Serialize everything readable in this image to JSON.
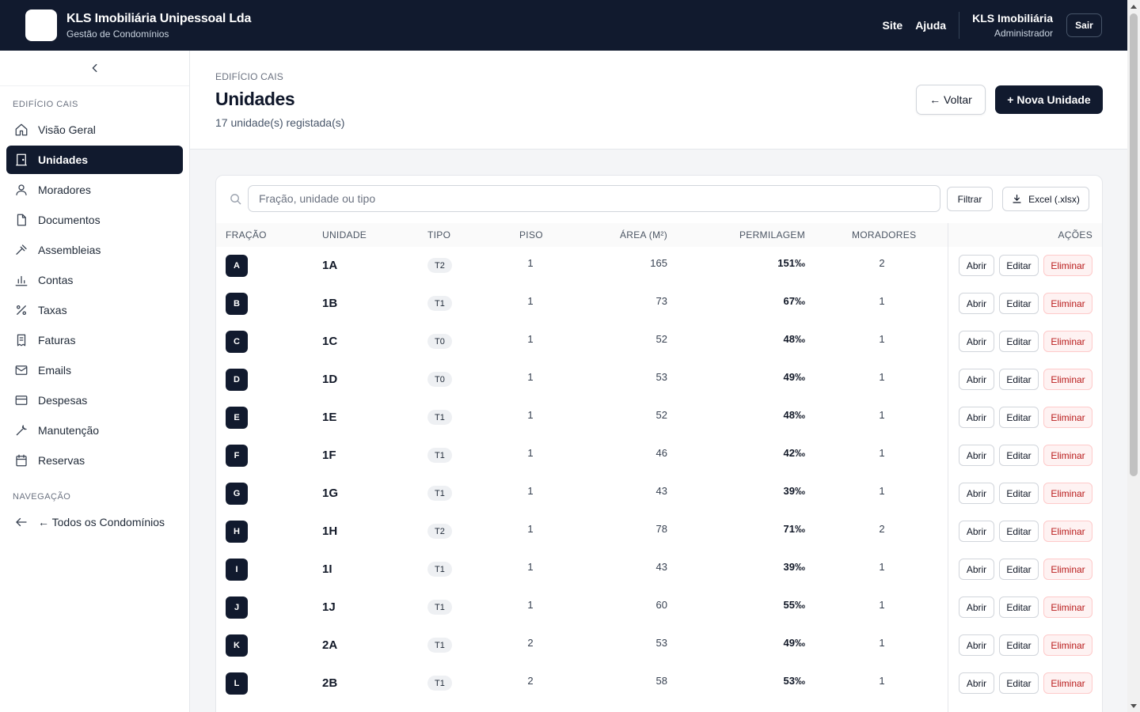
{
  "header": {
    "company": "KLS Imobiliária Unipessoal Lda",
    "subtitle": "Gestão de Condomínios",
    "links": [
      "Site",
      "Ajuda"
    ],
    "user_name": "KLS Imobiliária",
    "user_role": "Administrador",
    "logout_label": "Sair"
  },
  "sidebar": {
    "section_building": "EDIFÍCIO CAIS",
    "items": [
      {
        "label": "Visão Geral",
        "icon": "home-icon"
      },
      {
        "label": "Unidades",
        "icon": "door-icon",
        "active": true
      },
      {
        "label": "Moradores",
        "icon": "user-icon"
      },
      {
        "label": "Documentos",
        "icon": "file-icon"
      },
      {
        "label": "Assembleias",
        "icon": "gavel-icon"
      },
      {
        "label": "Contas",
        "icon": "bar-chart-icon"
      },
      {
        "label": "Taxas",
        "icon": "percent-icon"
      },
      {
        "label": "Faturas",
        "icon": "receipt-icon"
      },
      {
        "label": "Emails",
        "icon": "mail-icon"
      },
      {
        "label": "Despesas",
        "icon": "credit-card-icon"
      },
      {
        "label": "Manutenção",
        "icon": "wrench-icon"
      },
      {
        "label": "Reservas",
        "icon": "calendar-icon"
      }
    ],
    "section_nav": "NAVEGAÇÃO",
    "nav_items": [
      {
        "label": "← Todos os Condomínios",
        "icon": "arrow-left-icon"
      }
    ]
  },
  "page": {
    "breadcrumb": "EDIFÍCIO CAIS",
    "title": "Unidades",
    "subtitle": "17 unidade(s) registada(s)",
    "back_label": "← Voltar",
    "new_label": "+ Nova Unidade"
  },
  "toolbar": {
    "search_placeholder": "Fração, unidade ou tipo",
    "filter_label": "Filtrar",
    "excel_label": "Excel (.xlsx)"
  },
  "table": {
    "headers": {
      "fracao": "FRAÇÃO",
      "unidade": "UNIDADE",
      "tipo": "TIPO",
      "piso": "PISO",
      "area": "ÁREA (M²)",
      "permilagem": "PERMILAGEM",
      "moradores": "MORADORES",
      "acoes": "AÇÕES"
    },
    "action_labels": {
      "open": "Abrir",
      "edit": "Editar",
      "delete": "Eliminar"
    },
    "rows": [
      {
        "fracao": "A",
        "unidade": "1A",
        "tipo": "T2",
        "piso": "1",
        "area": "165",
        "permilagem": "151‰",
        "moradores": "2"
      },
      {
        "fracao": "B",
        "unidade": "1B",
        "tipo": "T1",
        "piso": "1",
        "area": "73",
        "permilagem": "67‰",
        "moradores": "1"
      },
      {
        "fracao": "C",
        "unidade": "1C",
        "tipo": "T0",
        "piso": "1",
        "area": "52",
        "permilagem": "48‰",
        "moradores": "1"
      },
      {
        "fracao": "D",
        "unidade": "1D",
        "tipo": "T0",
        "piso": "1",
        "area": "53",
        "permilagem": "49‰",
        "moradores": "1"
      },
      {
        "fracao": "E",
        "unidade": "1E",
        "tipo": "T1",
        "piso": "1",
        "area": "52",
        "permilagem": "48‰",
        "moradores": "1"
      },
      {
        "fracao": "F",
        "unidade": "1F",
        "tipo": "T1",
        "piso": "1",
        "area": "46",
        "permilagem": "42‰",
        "moradores": "1"
      },
      {
        "fracao": "G",
        "unidade": "1G",
        "tipo": "T1",
        "piso": "1",
        "area": "43",
        "permilagem": "39‰",
        "moradores": "1"
      },
      {
        "fracao": "H",
        "unidade": "1H",
        "tipo": "T2",
        "piso": "1",
        "area": "78",
        "permilagem": "71‰",
        "moradores": "2"
      },
      {
        "fracao": "I",
        "unidade": "1I",
        "tipo": "T1",
        "piso": "1",
        "area": "43",
        "permilagem": "39‰",
        "moradores": "1"
      },
      {
        "fracao": "J",
        "unidade": "1J",
        "tipo": "T1",
        "piso": "1",
        "area": "60",
        "permilagem": "55‰",
        "moradores": "1"
      },
      {
        "fracao": "K",
        "unidade": "2A",
        "tipo": "T1",
        "piso": "2",
        "area": "53",
        "permilagem": "49‰",
        "moradores": "1"
      },
      {
        "fracao": "L",
        "unidade": "2B",
        "tipo": "T1",
        "piso": "2",
        "area": "58",
        "permilagem": "53‰",
        "moradores": "1"
      }
    ]
  },
  "colors": {
    "primary": "#111a2e",
    "danger": "#b91c1c",
    "danger_bg": "#fef2f2"
  }
}
